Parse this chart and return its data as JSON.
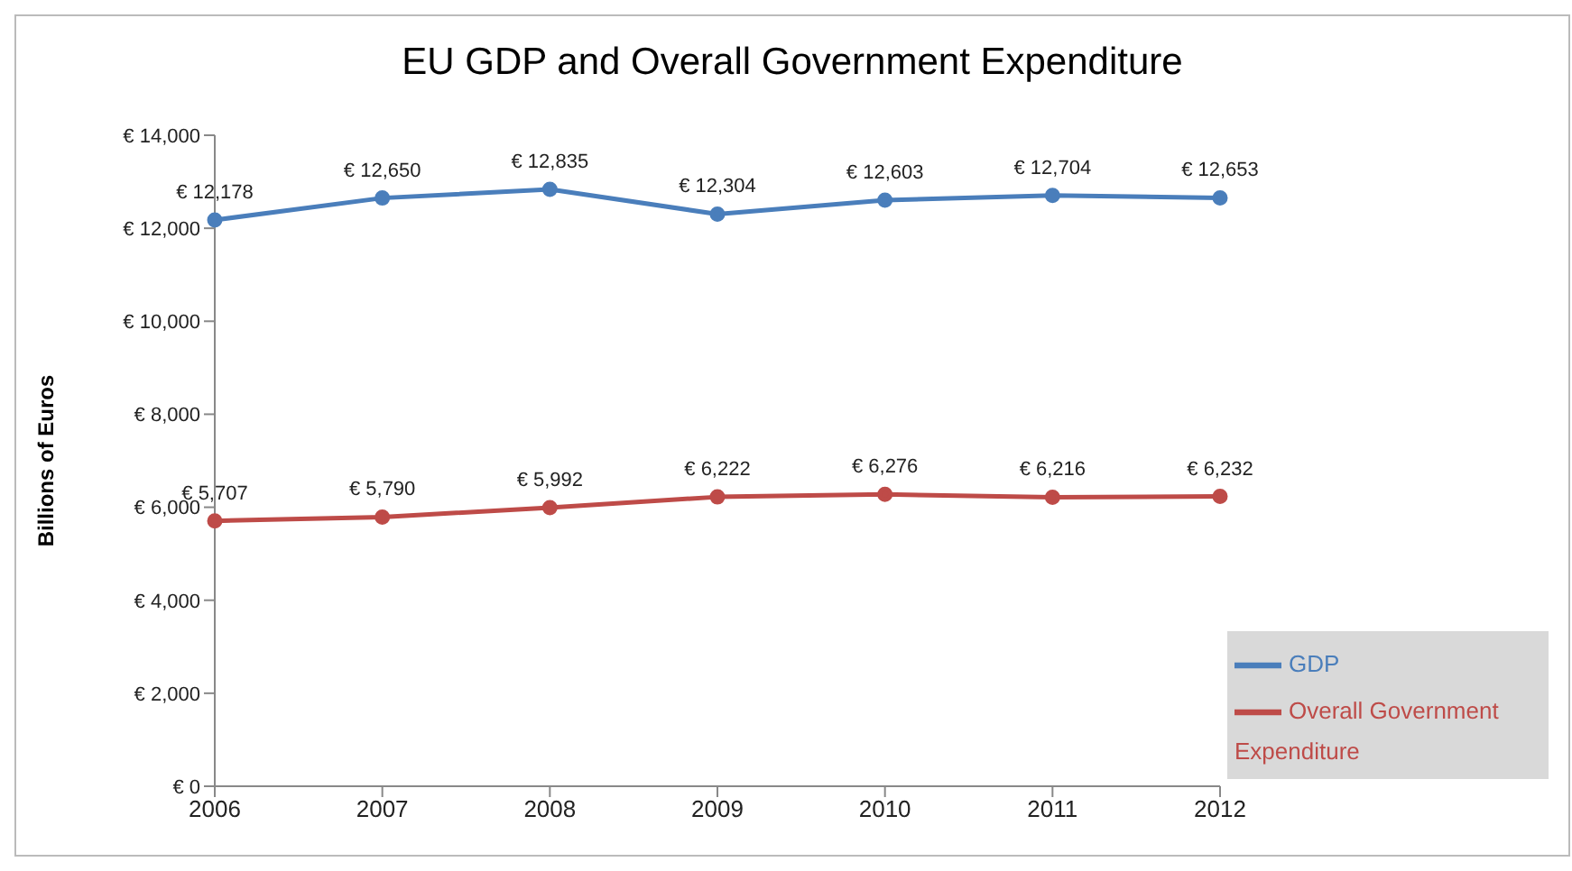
{
  "chart_data": {
    "type": "line",
    "title": "EU GDP and Overall Government Expenditure",
    "ylabel": "Billions of Euros",
    "categories": [
      "2006",
      "2007",
      "2008",
      "2009",
      "2010",
      "2011",
      "2012"
    ],
    "series": [
      {
        "name": "GDP",
        "color": "#4a7ebb",
        "values": [
          12178,
          12650,
          12835,
          12304,
          12603,
          12704,
          12653
        ],
        "value_labels": [
          "€ 12,178",
          "€ 12,650",
          "€ 12,835",
          "€ 12,304",
          "€ 12,603",
          "€ 12,704",
          "€ 12,653"
        ]
      },
      {
        "name": "Overall Government Expenditure",
        "color": "#be4b48",
        "values": [
          5707,
          5790,
          5992,
          6222,
          6276,
          6216,
          6232
        ],
        "value_labels": [
          "€ 5,707",
          "€ 5,790",
          "€ 5,992",
          "€ 6,222",
          "€ 6,276",
          "€ 6,216",
          "€ 6,232"
        ]
      }
    ],
    "ylim": [
      0,
      14000
    ],
    "yticks": [
      {
        "value": 0,
        "label": "€ 0"
      },
      {
        "value": 2000,
        "label": "€ 2,000"
      },
      {
        "value": 4000,
        "label": "€ 4,000"
      },
      {
        "value": 6000,
        "label": "€ 6,000"
      },
      {
        "value": 8000,
        "label": "€ 8,000"
      },
      {
        "value": 10000,
        "label": "€ 10,000"
      },
      {
        "value": 12000,
        "label": "€ 12,000"
      },
      {
        "value": 14000,
        "label": "€ 14,000"
      }
    ],
    "grid": false,
    "legend": "bottom right",
    "marker": "circle",
    "line_style": "solid"
  }
}
